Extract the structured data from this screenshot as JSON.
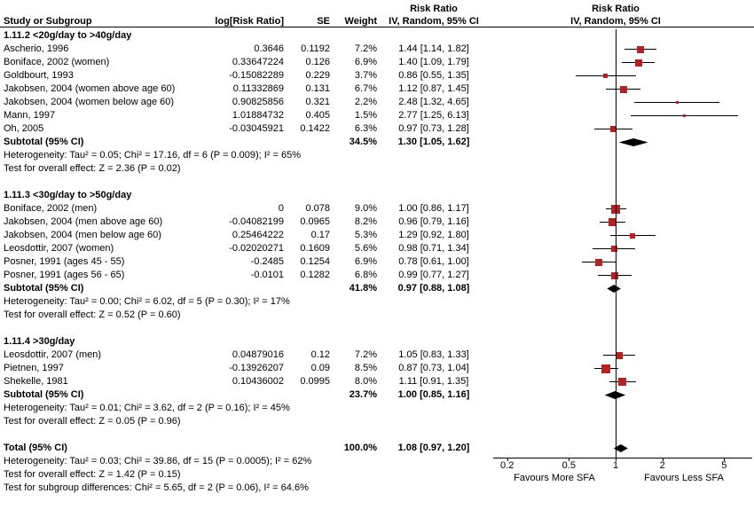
{
  "header": {
    "study": "Study or Subgroup",
    "log_rr": "log[Risk Ratio]",
    "se": "SE",
    "weight": "Weight",
    "effect_title": "Risk Ratio",
    "effect_ci": "IV, Random, 95% CI",
    "plot_title": "Risk Ratio",
    "plot_ci": "IV, Random, 95% CI"
  },
  "axis": {
    "scale": "log",
    "ticks": [
      {
        "label": "0.2",
        "value": 0.2
      },
      {
        "label": "0.5",
        "value": 0.5
      },
      {
        "label": "1",
        "value": 1
      },
      {
        "label": "2",
        "value": 2
      },
      {
        "label": "5",
        "value": 5
      }
    ],
    "left_label": "Favours More SFA",
    "right_label": "Favours Less SFA"
  },
  "colors": {
    "marker": "#b22222",
    "diamond": "#000000",
    "line": "#000000"
  },
  "chart_data": {
    "type": "forest",
    "effect_measure": "Risk Ratio",
    "model": "IV, Random, 95% CI",
    "groups": [
      {
        "label": "1.11.2 <20g/day to >40g/day",
        "studies": [
          {
            "study": "Ascherio, 1996",
            "log_rr": "0.3646",
            "se": "0.1192",
            "weight": "7.2%",
            "ci_text": "1.44 [1.14, 1.82]",
            "est": 1.44,
            "lo": 1.14,
            "hi": 1.82,
            "w": 7.2
          },
          {
            "study": "Boniface, 2002 (women)",
            "log_rr": "0.33647224",
            "se": "0.126",
            "weight": "6.9%",
            "ci_text": "1.40 [1.09, 1.79]",
            "est": 1.4,
            "lo": 1.09,
            "hi": 1.79,
            "w": 6.9
          },
          {
            "study": "Goldbourt, 1993",
            "log_rr": "-0.15082289",
            "se": "0.229",
            "weight": "3.7%",
            "ci_text": "0.86 [0.55, 1.35]",
            "est": 0.86,
            "lo": 0.55,
            "hi": 1.35,
            "w": 3.7
          },
          {
            "study": "Jakobsen, 2004 (women above age 60)",
            "log_rr": "0.11332869",
            "se": "0.131",
            "weight": "6.7%",
            "ci_text": "1.12 [0.87, 1.45]",
            "est": 1.12,
            "lo": 0.87,
            "hi": 1.45,
            "w": 6.7
          },
          {
            "study": "Jakobsen, 2004 (women below age 60)",
            "log_rr": "0.90825856",
            "se": "0.321",
            "weight": "2.2%",
            "ci_text": "2.48 [1.32, 4.65]",
            "est": 2.48,
            "lo": 1.32,
            "hi": 4.65,
            "w": 2.2
          },
          {
            "study": "Mann, 1997",
            "log_rr": "1.01884732",
            "se": "0.405",
            "weight": "1.5%",
            "ci_text": "2.77 [1.25, 6.13]",
            "est": 2.77,
            "lo": 1.25,
            "hi": 6.13,
            "w": 1.5
          },
          {
            "study": "Oh, 2005",
            "log_rr": "-0.03045921",
            "se": "0.1422",
            "weight": "6.3%",
            "ci_text": "0.97 [0.73, 1.28]",
            "est": 0.97,
            "lo": 0.73,
            "hi": 1.28,
            "w": 6.3
          }
        ],
        "subtotal": {
          "label": "Subtotal (95% CI)",
          "weight": "34.5%",
          "ci_text": "1.30 [1.05, 1.62]",
          "est": 1.3,
          "lo": 1.05,
          "hi": 1.62
        },
        "heterogeneity": "Heterogeneity: Tau² = 0.05; Chi² = 17.16, df = 6 (P = 0.009); I² = 65%",
        "overall_effect": "Test for overall effect: Z = 2.36 (P = 0.02)"
      },
      {
        "label": "1.11.3 <30g/day to >50g/day",
        "studies": [
          {
            "study": "Boniface, 2002 (men)",
            "log_rr": "0",
            "se": "0.078",
            "weight": "9.0%",
            "ci_text": "1.00 [0.86, 1.17]",
            "est": 1.0,
            "lo": 0.86,
            "hi": 1.17,
            "w": 9.0
          },
          {
            "study": "Jakobsen, 2004 (men above age 60)",
            "log_rr": "-0.04082199",
            "se": "0.0965",
            "weight": "8.2%",
            "ci_text": "0.96 [0.79, 1.16]",
            "est": 0.96,
            "lo": 0.79,
            "hi": 1.16,
            "w": 8.2
          },
          {
            "study": "Jakobsen, 2004 (men below age 60)",
            "log_rr": "0.25464222",
            "se": "0.17",
            "weight": "5.3%",
            "ci_text": "1.29 [0.92, 1.80]",
            "est": 1.29,
            "lo": 0.92,
            "hi": 1.8,
            "w": 5.3
          },
          {
            "study": "Leosdottir, 2007 (women)",
            "log_rr": "-0.02020271",
            "se": "0.1609",
            "weight": "5.6%",
            "ci_text": "0.98 [0.71, 1.34]",
            "est": 0.98,
            "lo": 0.71,
            "hi": 1.34,
            "w": 5.6
          },
          {
            "study": "Posner, 1991 (ages 45 - 55)",
            "log_rr": "-0.2485",
            "se": "0.1254",
            "weight": "6.9%",
            "ci_text": "0.78 [0.61, 1.00]",
            "est": 0.78,
            "lo": 0.61,
            "hi": 1.0,
            "w": 6.9
          },
          {
            "study": "Posner, 1991 (ages 56 - 65)",
            "log_rr": "-0.0101",
            "se": "0.1282",
            "weight": "6.8%",
            "ci_text": "0.99 [0.77, 1.27]",
            "est": 0.99,
            "lo": 0.77,
            "hi": 1.27,
            "w": 6.8
          }
        ],
        "subtotal": {
          "label": "Subtotal (95% CI)",
          "weight": "41.8%",
          "ci_text": "0.97 [0.88, 1.08]",
          "est": 0.97,
          "lo": 0.88,
          "hi": 1.08
        },
        "heterogeneity": "Heterogeneity: Tau² = 0.00; Chi² = 6.02, df = 5 (P = 0.30); I² = 17%",
        "overall_effect": "Test for overall effect: Z = 0.52 (P = 0.60)"
      },
      {
        "label": "1.11.4 >30g/day",
        "studies": [
          {
            "study": "Leosdottir, 2007 (men)",
            "log_rr": "0.04879016",
            "se": "0.12",
            "weight": "7.2%",
            "ci_text": "1.05 [0.83, 1.33]",
            "est": 1.05,
            "lo": 0.83,
            "hi": 1.33,
            "w": 7.2
          },
          {
            "study": "Pietnen, 1997",
            "log_rr": "-0.13926207",
            "se": "0.09",
            "weight": "8.5%",
            "ci_text": "0.87 [0.73, 1.04]",
            "est": 0.87,
            "lo": 0.73,
            "hi": 1.04,
            "w": 8.5
          },
          {
            "study": "Shekelle, 1981",
            "log_rr": "0.10436002",
            "se": "0.0995",
            "weight": "8.0%",
            "ci_text": "1.11 [0.91, 1.35]",
            "est": 1.11,
            "lo": 0.91,
            "hi": 1.35,
            "w": 8.0
          }
        ],
        "subtotal": {
          "label": "Subtotal (95% CI)",
          "weight": "23.7%",
          "ci_text": "1.00 [0.85, 1.16]",
          "est": 1.0,
          "lo": 0.85,
          "hi": 1.16
        },
        "heterogeneity": "Heterogeneity: Tau² = 0.01; Chi² = 3.62, df = 2 (P = 0.16); I² = 45%",
        "overall_effect": "Test for overall effect: Z = 0.05 (P = 0.96)"
      }
    ],
    "total": {
      "label": "Total (95% CI)",
      "weight": "100.0%",
      "ci_text": "1.08 [0.97, 1.20]",
      "est": 1.08,
      "lo": 0.97,
      "hi": 1.2
    },
    "total_heterogeneity": "Heterogeneity: Tau² = 0.03; Chi² = 39.86, df = 15 (P = 0.0005); I² = 62%",
    "total_overall_effect": "Test for overall effect: Z = 1.42 (P = 0.15)",
    "subgroup_differences": "Test for subgroup differences: Chi² = 5.65, df = 2 (P = 0.06), I² = 64.6%"
  }
}
